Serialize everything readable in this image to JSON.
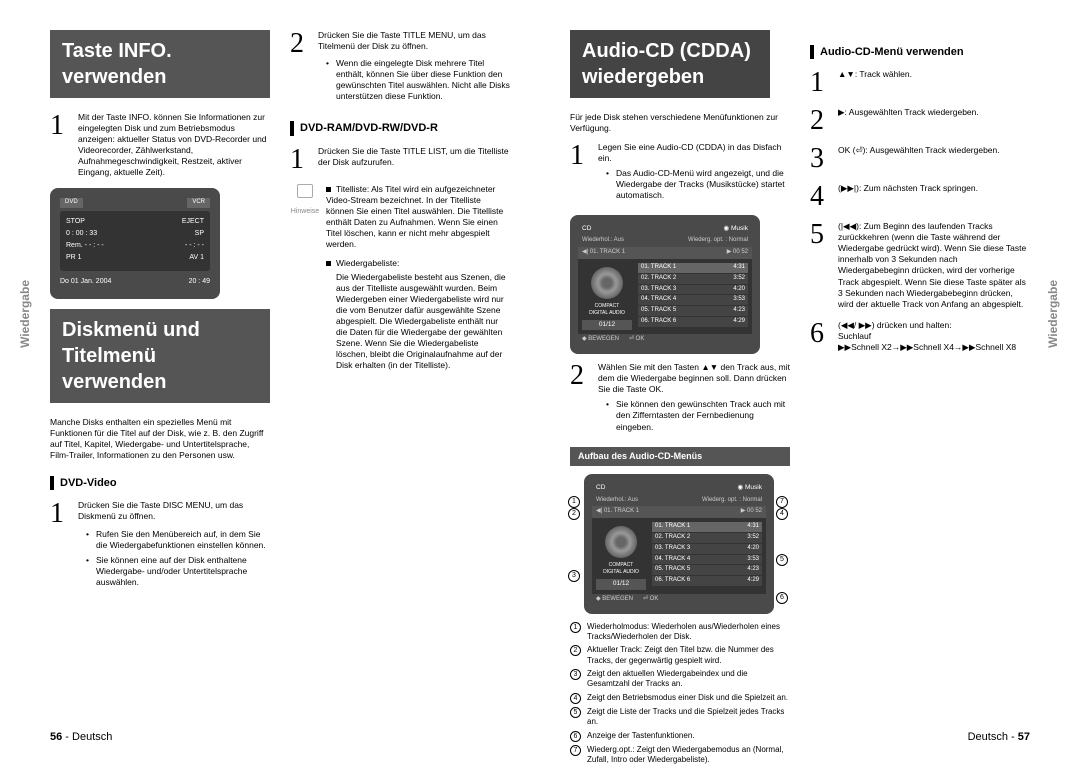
{
  "leftPage": {
    "sideTab": "Wiedergabe",
    "banner1": {
      "line1": "Taste INFO. verwenden"
    },
    "step1Text": "Mit der Taste INFO. können Sie Informationen zur eingelegten Disk und zum Betriebsmodus anzeigen: aktueller Status von DVD-Recorder und Videorecorder, Zählwerkstand, Aufnahmegeschwindigkeit, Restzeit, aktiver Eingang, aktuelle Zeit).",
    "infoDisplay": {
      "dvdLabel": "DVD",
      "vcrLabel": "VCR",
      "stop": "STOP",
      "eject": "EJECT",
      "time": "0 : 00 : 33",
      "sp": "SP",
      "remain": "Rem. - - : - -",
      "firm": "- - : - -",
      "pr": "PR 1",
      "av": "AV 1",
      "date": "Do 01 Jan. 2004",
      "clock": "20 : 49"
    },
    "banner2": {
      "line1": "Diskmenü und",
      "line2": "Titelmenü verwenden"
    },
    "introText": "Manche Disks enthalten ein spezielles Menü mit Funktionen für die Titel auf der Disk, wie z. B. den Zugriff auf Titel, Kapitel, Wiedergabe- und Untertitelsprache, Film-Trailer, Informationen zu den Personen usw.",
    "dvdVideoHeading": "DVD-Video",
    "dvdStep1": "Drücken Sie die Taste DISC MENU, um das Diskmenü zu öffnen.",
    "dvdBullet1": "Rufen Sie den Menübereich auf, in dem Sie die Wiedergabefunktionen einstellen können.",
    "dvdBullet2": "Sie können eine auf der Disk enthaltene Wiedergabe- und/oder Untertitelsprache auswählen.",
    "col2Step2": "Drücken Sie die Taste TITLE MENU, um das Titelmenü der Disk zu öffnen.",
    "col2Bullet": "Wenn die eingelegte Disk mehrere Titel enthält, können Sie über diese Funktion den gewünschten Titel auswählen. Nicht alle Disks unterstützen diese Funktion.",
    "dvdRamHeading": "DVD-RAM/DVD-RW/DVD-R",
    "dvdRamStep1": "Drücken Sie die Taste TITLE LIST, um die Titelliste der Disk aufzurufen.",
    "hinweise": "Hinweise",
    "titelliste": "Titelliste: Als Titel wird ein aufgezeichneter Video-Stream bezeichnet. In der Titelliste können Sie einen Titel auswählen. Die Titelliste enthält Daten zu Aufnahmen. Wenn Sie einen Titel löschen, kann er nicht mehr abgespielt werden.",
    "wiedergabeliste": "Wiedergabeliste:",
    "wiedergabelisteText": "Die Wiedergabeliste besteht aus Szenen, die aus der Titelliste ausgewählt wurden. Beim Wiedergeben einer Wiedergabeliste wird nur die vom Benutzer dafür ausgewählte Szene abgespielt. Die Wiedergabeliste enthält nur die Daten für die Wiedergabe der gewählten Szene. Wenn Sie die Wiedergabeliste löschen, bleibt die Originalaufnahme auf der Disk erhalten (in der Titelliste).",
    "footerPage": "56",
    "footerText": "Deutsch"
  },
  "rightPage": {
    "sideTab": "Wiedergabe",
    "banner1": {
      "line1": "Audio-CD (CDDA)",
      "line2": "wiedergeben"
    },
    "introText": "Für jede Disk stehen verschiedene Menüfunktionen zur Verfügung.",
    "step1": "Legen Sie eine Audio-CD (CDDA) in das Disfach ein.",
    "step1Bullet": "Das Audio-CD-Menü wird angezeigt, und die Wiedergabe der Tracks (Musikstücke) startet automatisch.",
    "cdMenu": {
      "cd": "CD",
      "musik": "Musik",
      "wiederhol": "Wiederhol.: Aus",
      "wiederg": "Wiederg. opt. : Normal",
      "currentTrack": "01. TRACK 1",
      "currentTime": "00 52",
      "tracks": [
        {
          "name": "01. TRACK 1",
          "time": "4:31"
        },
        {
          "name": "02. TRACK 2",
          "time": "3:52"
        },
        {
          "name": "03. TRACK 3",
          "time": "4:20"
        },
        {
          "name": "04. TRACK 4",
          "time": "3:53"
        },
        {
          "name": "05. TRACK 5",
          "time": "4:23"
        },
        {
          "name": "06. TRACK 6",
          "time": "4:29"
        }
      ],
      "counter": "01/12",
      "bewegen": "BEWEGEN",
      "ok": "OK"
    },
    "step2": "Wählen Sie mit den Tasten ▲▼ den Track aus, mit dem die Wiedergabe beginnen soll. Dann drücken Sie die Taste OK.",
    "step2Bullet": "Sie können den gewünschten Track auch mit den Zifferntasten der Fernbedienung eingeben.",
    "aufbauHeading": "Aufbau des Audio-CD-Menüs",
    "descriptions": [
      "Wiederholmodus: Wiederholen aus/Wiederholen eines Tracks/Wiederholen der Disk.",
      "Aktueller Track: Zeigt den Titel bzw. die Nummer des Tracks, der gegenwärtig gespielt wird.",
      "Zeigt den aktuellen Wiedergabeindex und die Gesamtzahl der Tracks an.",
      "Zeigt den Betriebsmodus einer Disk und die Spielzeit an.",
      "Zeigt die Liste der Tracks und die Spielzeit jedes Tracks an.",
      "Anzeige der Tastenfunktionen.",
      "Wiederg.opt.: Zeigt den Wiedergabemodus an (Normal, Zufall, Intro oder Wiedergabeliste)."
    ],
    "audioMenuHeading": "Audio-CD-Menü verwenden",
    "rStep1": "▲▼: Track wählen.",
    "rStep2": "▶: Ausgewählten Track wiedergeben.",
    "rStep3": "OK (⏎): Ausgewählten Track wiedergeben.",
    "rStep4": "(▶▶|): Zum nächsten Track springen.",
    "rStep5": "(|◀◀): Zum Beginn des laufenden Tracks zurückkehren (wenn die Taste während der Wiedergabe gedrückt wird). Wenn Sie diese Taste innerhalb von 3 Sekunden nach Wiedergabebeginn drücken, wird der vorherige Track abgespielt. Wenn Sie diese Taste später als 3 Sekunden nach Wiedergabebeginn drücken, wird der aktuelle Track von Anfang an abgespielt.",
    "rStep6a": "(◀◀/ ▶▶) drücken und halten:",
    "rStep6b": "Suchlauf",
    "rStep6c": "▶▶Schnell X2→▶▶Schnell X4→▶▶Schnell X8",
    "footerText": "Deutsch",
    "footerPage": "57"
  }
}
